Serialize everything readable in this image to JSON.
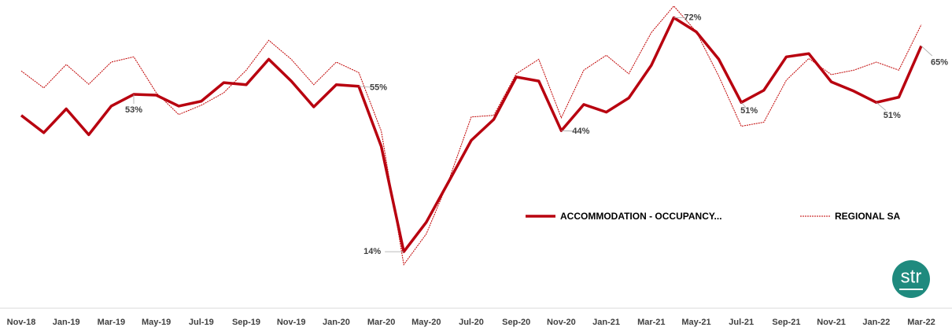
{
  "chart_data": {
    "type": "line",
    "categories": [
      "Nov-18",
      null,
      "Jan-19",
      null,
      "Mar-19",
      null,
      "May-19",
      null,
      "Jul-19",
      null,
      "Sep-19",
      null,
      "Nov-19",
      null,
      "Jan-20",
      null,
      "Mar-20",
      null,
      "May-20",
      null,
      "Jul-20",
      null,
      "Sep-20",
      null,
      "Nov-20",
      null,
      "Jan-21",
      null,
      "Mar-21",
      null,
      "May-21",
      null,
      "Jul-21",
      null,
      "Sep-21",
      null,
      "Nov-21",
      null,
      "Jan-22",
      null,
      "Mar-22"
    ],
    "series": [
      {
        "name": "ACCOMMODATION - OCCUPANCY...",
        "color": "#b8000f",
        "style": "solid",
        "values": [
          47.8,
          43.5,
          49.4,
          43.0,
          50.1,
          53,
          52.8,
          50.1,
          51.3,
          55.9,
          55.4,
          61.7,
          56.3,
          49.9,
          55.4,
          55,
          40.1,
          14,
          21.3,
          31.4,
          41.6,
          46.8,
          57.3,
          56.3,
          44,
          50.5,
          48.6,
          52.1,
          60.2,
          72,
          68.5,
          61.7,
          51,
          54.0,
          62.3,
          63.1,
          56.1,
          53.8,
          51,
          52.3,
          65
        ],
        "value_labels": [
          null,
          null,
          null,
          null,
          null,
          "53%",
          null,
          null,
          null,
          null,
          null,
          null,
          null,
          null,
          null,
          "55%",
          null,
          "14%",
          null,
          null,
          null,
          null,
          null,
          null,
          "44%",
          null,
          null,
          null,
          null,
          "72%",
          null,
          null,
          "51%",
          null,
          null,
          null,
          null,
          null,
          "51%",
          null,
          "65%"
        ]
      },
      {
        "name": "REGIONAL SA",
        "color": "#c00000",
        "style": "dotted",
        "values": [
          58.8,
          54.6,
          60.4,
          55.5,
          61.0,
          62.3,
          53.4,
          48.0,
          50.3,
          53.4,
          59.0,
          66.4,
          61.7,
          55.4,
          61.0,
          58.4,
          43.9,
          10.8,
          18.4,
          31.7,
          47.4,
          47.8,
          58.1,
          61.7,
          47.2,
          59.0,
          62.7,
          58.1,
          68.3,
          74.9,
          68.5,
          57.5,
          45.1,
          46.1,
          56.5,
          61.9,
          57.9,
          59.0,
          61.0,
          59.0,
          70.3
        ]
      }
    ],
    "ylim": [
      0,
      76
    ],
    "legend": "right",
    "logo": "str"
  }
}
